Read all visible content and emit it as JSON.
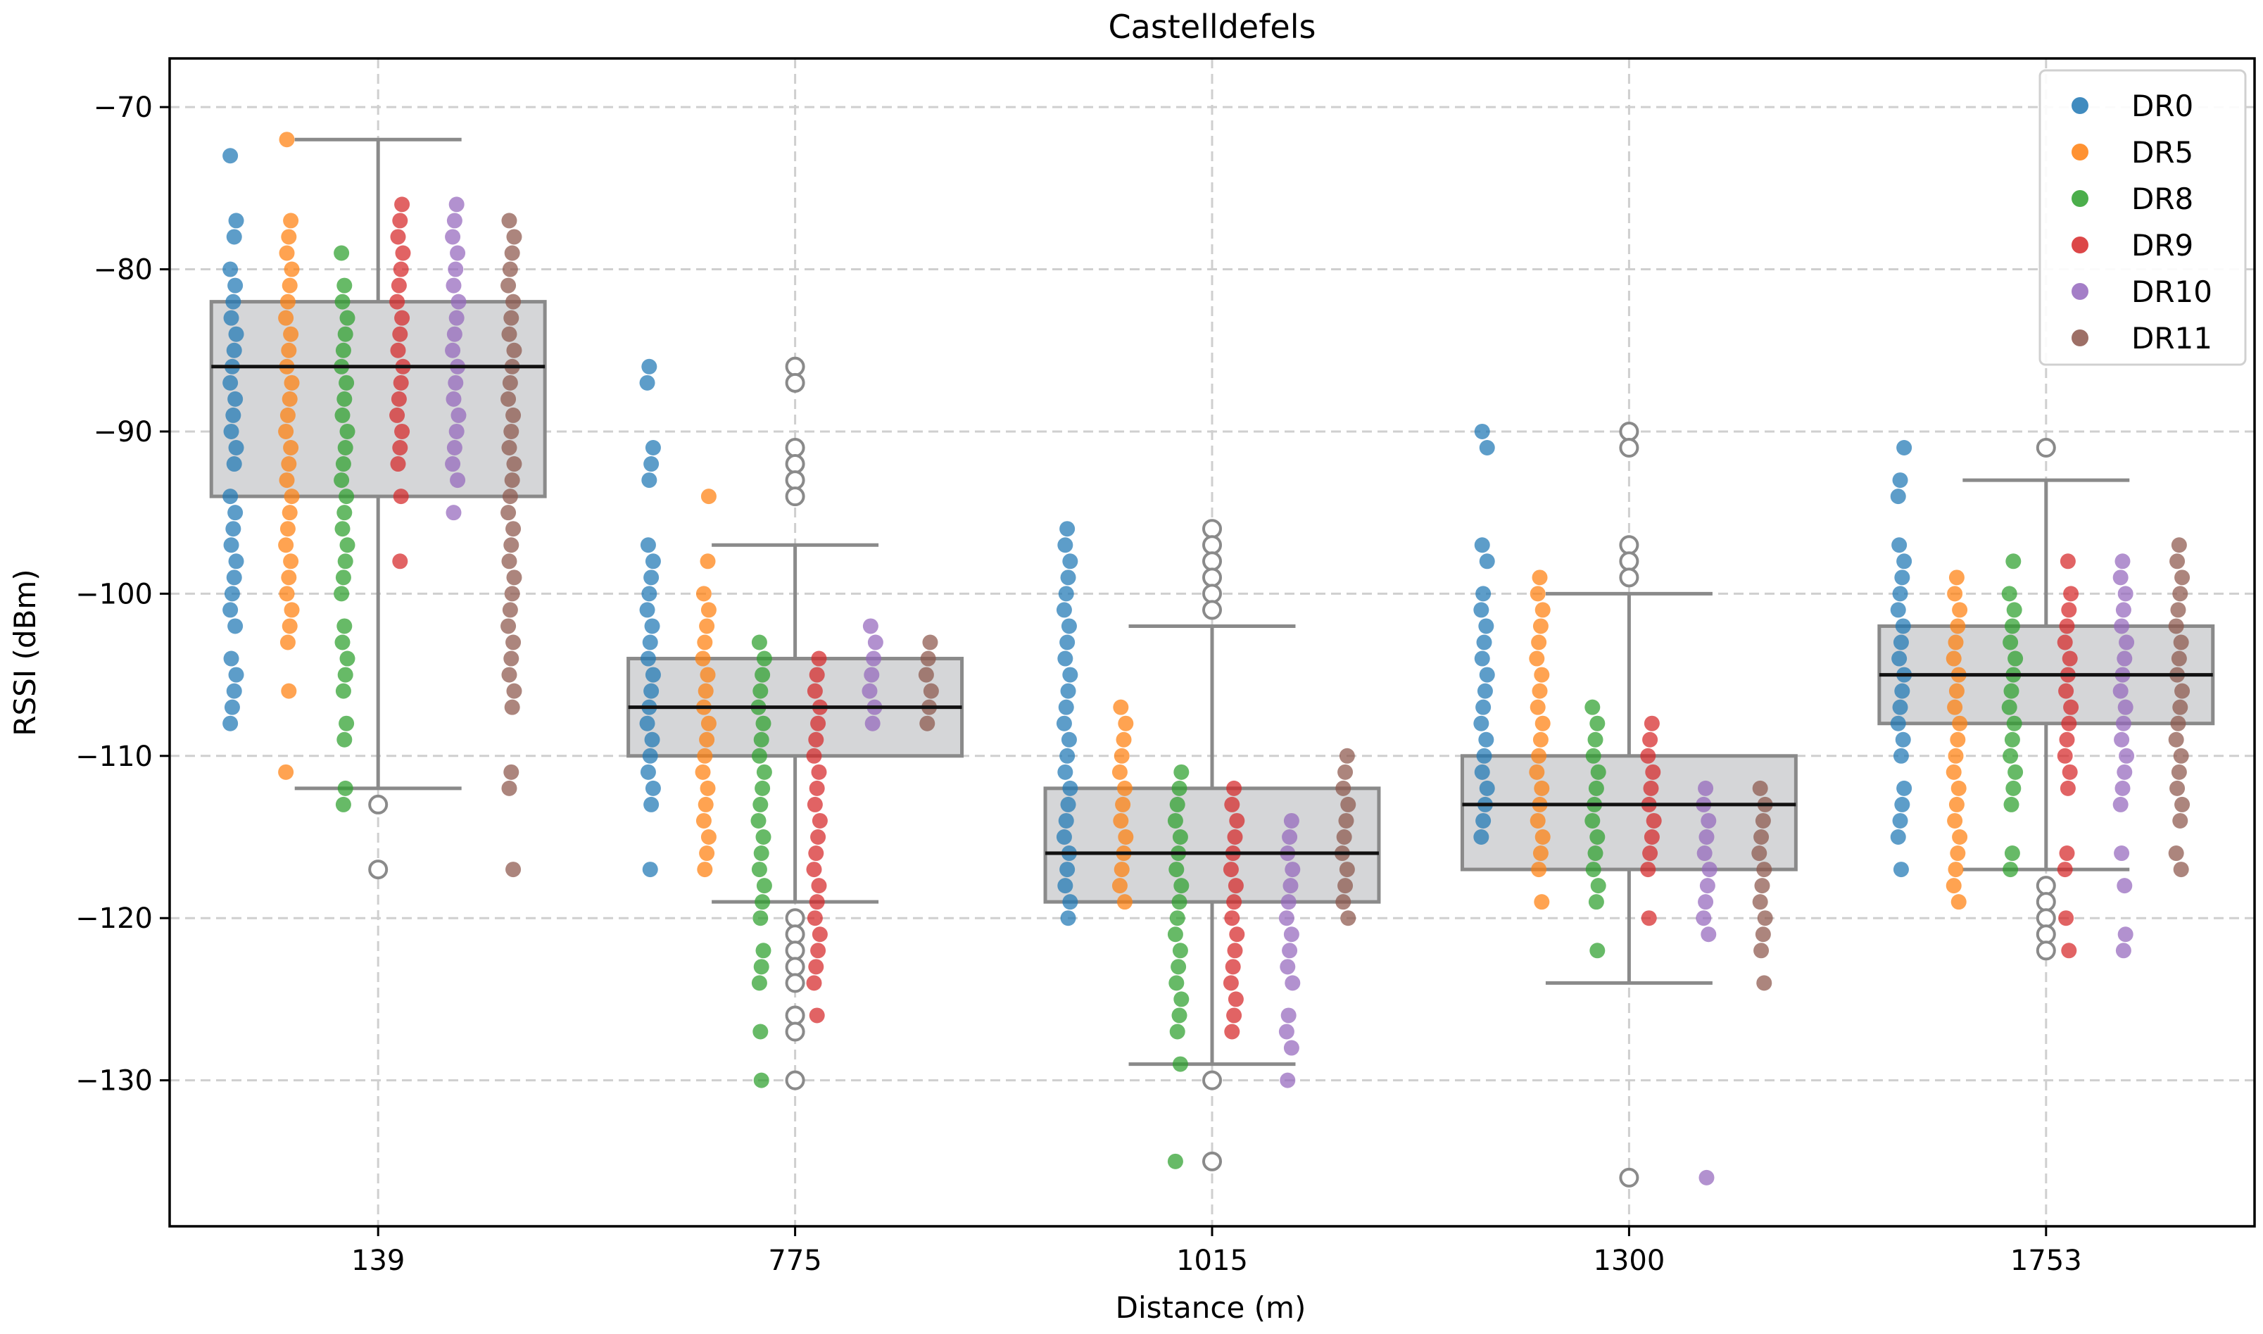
{
  "chart_data": {
    "type": "box+strip",
    "title": "Castelldefels",
    "xlabel": "Distance (m)",
    "ylabel": "RSSI (dBm)",
    "ylim": [
      -139,
      -67
    ],
    "yticks": [
      -70,
      -80,
      -90,
      -100,
      -110,
      -120,
      -130
    ],
    "ytick_labels": [
      "−70",
      "−80",
      "−90",
      "−100",
      "−110",
      "−120",
      "−130"
    ],
    "categories": [
      "139",
      "775",
      "1015",
      "1300",
      "1753"
    ],
    "grid": true,
    "legend_position": "top-right",
    "colors": {
      "box_fill": "#d5d6d8",
      "box_edge": "#8a8a8a",
      "median": "#111111",
      "outlier_edge": "#8a8a8a"
    },
    "boxes": [
      {
        "category": "139",
        "q1": -94,
        "median": -86,
        "q3": -82,
        "whisker_low": -112,
        "whisker_high": -72,
        "outliers": [
          -113,
          -117
        ]
      },
      {
        "category": "775",
        "q1": -110,
        "median": -107,
        "q3": -104,
        "whisker_low": -119,
        "whisker_high": -97,
        "outliers": [
          -86,
          -87,
          -91,
          -92,
          -93,
          -94,
          -120,
          -121,
          -122,
          -123,
          -124,
          -126,
          -127,
          -130
        ]
      },
      {
        "category": "1015",
        "q1": -119,
        "median": -116,
        "q3": -112,
        "whisker_low": -129,
        "whisker_high": -102,
        "outliers": [
          -96,
          -97,
          -98,
          -99,
          -100,
          -101,
          -130,
          -135
        ]
      },
      {
        "category": "1300",
        "q1": -117,
        "median": -113,
        "q3": -110,
        "whisker_low": -124,
        "whisker_high": -100,
        "outliers": [
          -90,
          -91,
          -97,
          -98,
          -99,
          -136
        ]
      },
      {
        "category": "1753",
        "q1": -108,
        "median": -105,
        "q3": -102,
        "whisker_low": -117,
        "whisker_high": -93,
        "outliers": [
          -91,
          -118,
          -119,
          -120,
          -121,
          -122
        ]
      }
    ],
    "series": [
      {
        "name": "DR0",
        "color": "#1f77b4",
        "points": [
          {
            "category": "139",
            "range": [
              -92,
              -80
            ],
            "extras": [
              -73,
              -77,
              -78,
              -94,
              -95,
              -96,
              -97,
              -98,
              -99,
              -100,
              -101,
              -102,
              -104,
              -105,
              -106,
              -107,
              -108
            ]
          },
          {
            "category": "775",
            "range": [
              -113,
              -98
            ],
            "extras": [
              -86,
              -87,
              -91,
              -92,
              -93,
              -97,
              -117
            ]
          },
          {
            "category": "1015",
            "range": [
              -117,
              -98
            ],
            "extras": [
              -96,
              -97,
              -118,
              -119,
              -120
            ]
          },
          {
            "category": "1300",
            "range": [
              -113,
              -100
            ],
            "extras": [
              -90,
              -91,
              -97,
              -98,
              -114,
              -115
            ]
          },
          {
            "category": "1753",
            "range": [
              -110,
              -98
            ],
            "extras": [
              -91,
              -93,
              -94,
              -97,
              -112,
              -113,
              -114,
              -115,
              -117
            ]
          }
        ]
      },
      {
        "name": "DR5",
        "color": "#ff7f0e",
        "points": [
          {
            "category": "139",
            "range": [
              -99,
              -77
            ],
            "extras": [
              -72,
              -100,
              -101,
              -102,
              -103,
              -106,
              -111
            ]
          },
          {
            "category": "775",
            "range": [
              -112,
              -100
            ],
            "extras": [
              -94,
              -98,
              -113,
              -114,
              -115,
              -116,
              -117
            ]
          },
          {
            "category": "1015",
            "range": [
              -119,
              -107
            ],
            "extras": []
          },
          {
            "category": "1300",
            "range": [
              -117,
              -100
            ],
            "extras": [
              -99,
              -119
            ]
          },
          {
            "category": "1753",
            "range": [
              -116,
              -99
            ],
            "extras": [
              -117,
              -118,
              -119
            ]
          }
        ]
      },
      {
        "name": "DR8",
        "color": "#2ca02c",
        "points": [
          {
            "category": "139",
            "range": [
              -98,
              -81
            ],
            "extras": [
              -79,
              -99,
              -100,
              -102,
              -103,
              -104,
              -105,
              -106,
              -108,
              -109,
              -112,
              -113
            ]
          },
          {
            "category": "775",
            "range": [
              -120,
              -103
            ],
            "extras": [
              -122,
              -123,
              -124,
              -127,
              -130
            ]
          },
          {
            "category": "1015",
            "range": [
              -124,
              -111
            ],
            "extras": [
              -125,
              -126,
              -127,
              -129,
              -135
            ]
          },
          {
            "category": "1300",
            "range": [
              -118,
              -107
            ],
            "extras": [
              -119,
              -122
            ]
          },
          {
            "category": "1753",
            "range": [
              -113,
              -100
            ],
            "extras": [
              -98,
              -116,
              -117
            ]
          }
        ]
      },
      {
        "name": "DR9",
        "color": "#d62728",
        "points": [
          {
            "category": "139",
            "range": [
              -92,
              -77
            ],
            "extras": [
              -76,
              -94,
              -98
            ]
          },
          {
            "category": "775",
            "range": [
              -121,
              -104
            ],
            "extras": [
              -122,
              -123,
              -124,
              -126
            ]
          },
          {
            "category": "1015",
            "range": [
              -126,
              -112
            ],
            "extras": [
              -127
            ]
          },
          {
            "category": "1300",
            "range": [
              -117,
              -108
            ],
            "extras": [
              -120
            ]
          },
          {
            "category": "1753",
            "range": [
              -112,
              -100
            ],
            "extras": [
              -98,
              -116,
              -117,
              -120,
              -122
            ]
          }
        ]
      },
      {
        "name": "DR10",
        "color": "#9467bd",
        "points": [
          {
            "category": "139",
            "range": [
              -92,
              -76
            ],
            "extras": [
              -93,
              -95
            ]
          },
          {
            "category": "775",
            "range": [
              -108,
              -103
            ],
            "extras": [
              -102
            ]
          },
          {
            "category": "1015",
            "range": [
              -123,
              -114
            ],
            "extras": [
              -124,
              -126,
              -127,
              -128,
              -130
            ]
          },
          {
            "category": "1300",
            "range": [
              -121,
              -112
            ],
            "extras": [
              -136
            ]
          },
          {
            "category": "1753",
            "range": [
              -113,
              -98
            ],
            "extras": [
              -116,
              -118,
              -121,
              -122
            ]
          }
        ]
      },
      {
        "name": "DR11",
        "color": "#8c564b",
        "points": [
          {
            "category": "139",
            "range": [
              -104,
              -77
            ],
            "extras": [
              -105,
              -106,
              -107,
              -111,
              -112,
              -117
            ]
          },
          {
            "category": "775",
            "range": [
              -108,
              -103
            ],
            "extras": []
          },
          {
            "category": "1015",
            "range": [
              -119,
              -110
            ],
            "extras": [
              -120
            ]
          },
          {
            "category": "1300",
            "range": [
              -121,
              -112
            ],
            "extras": [
              -122,
              -124
            ]
          },
          {
            "category": "1753",
            "range": [
              -114,
              -97
            ],
            "extras": [
              -116,
              -117
            ]
          }
        ]
      }
    ]
  }
}
